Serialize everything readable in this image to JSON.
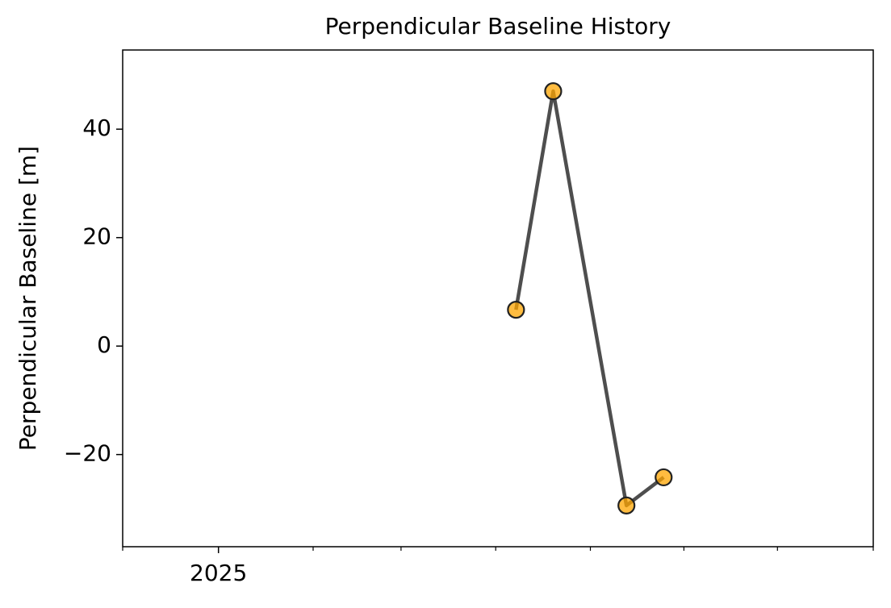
{
  "chart_data": {
    "type": "line",
    "title": "Perpendicular Baseline History",
    "ylabel": "Perpendicular Baseline [m]",
    "x": [
      2025.264,
      2025.297,
      2025.362,
      2025.395
    ],
    "series": [
      {
        "values": [
          6.7,
          47.0,
          -29.4,
          -24.2
        ],
        "color": "#444444",
        "marker_color": "#ffa500"
      }
    ],
    "xlim": [
      2024.915,
      2025.581
    ],
    "xticks": [
      {
        "value": 2025,
        "label": "2025"
      }
    ],
    "xminorticks": [
      2024.915,
      2025.084,
      2025.162,
      2025.246,
      2025.33,
      2025.413,
      2025.496,
      2025.581
    ],
    "ylim": [
      -37.0,
      54.6
    ],
    "yticks": [
      {
        "value": -20,
        "label": "−20"
      },
      0,
      20,
      40
    ],
    "grid": false
  }
}
